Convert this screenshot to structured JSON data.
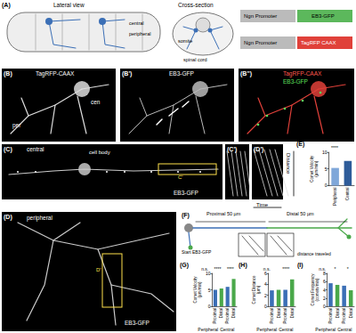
{
  "panels": {
    "A": {
      "label": "(A)",
      "texts": [
        "Lateral view",
        "Cross-section",
        "central",
        "peripheral",
        "somite",
        "spinal cord",
        "Ngn Promoter",
        "EB3-GFP",
        "Ngn Promoter",
        "TagRFP CAAX"
      ]
    },
    "B": {
      "label": "(B)",
      "texts": [
        "TagRFP-CAAX",
        "cen",
        "per"
      ]
    },
    "B1": {
      "label": "(B')",
      "texts": [
        "EB3-GFP"
      ]
    },
    "B2": {
      "label": "(B'')",
      "texts": [
        "TagRFP-CAAX",
        "EB3-GFP"
      ]
    },
    "C": {
      "label": "(C)",
      "texts": [
        "central",
        "cell body",
        "C'",
        "EB3-GFP"
      ]
    },
    "C1": {
      "label": "(C')"
    },
    "D1": {
      "label": "(D')",
      "texts": [
        "Distance",
        "Time"
      ]
    },
    "D": {
      "label": "(D)",
      "texts": [
        "peripheral",
        "D'",
        "EB3-GFP"
      ]
    },
    "F": {
      "label": "(F)",
      "texts": [
        "Proximal 50 µm",
        "Distal 50 µm",
        "Start EB3-GFP",
        "distance traveled"
      ]
    }
  },
  "chart_data": [
    {
      "type": "bar",
      "title": "(E)",
      "ylabel": "Comet Velocity (µm/min)",
      "categories": [
        "Peripheral",
        "Central"
      ],
      "values": [
        5.3,
        7.4
      ],
      "colors": [
        "#7fa7d9",
        "#2e5c9a"
      ],
      "ylim": [
        0,
        10
      ],
      "yticks": [
        0,
        5,
        10
      ],
      "annotations": [
        "****"
      ]
    },
    {
      "type": "bar",
      "title": "(G)",
      "ylabel": "Comet Velocity (µm/min)",
      "categories": [
        "Proximal",
        "Distal",
        "Proximal",
        "Distal"
      ],
      "groups": [
        "Peripheral",
        "Central"
      ],
      "values": [
        5.0,
        5.4,
        5.9,
        8.3
      ],
      "colors": [
        "#3b6fb6",
        "#4aa84a",
        "#3b6fb6",
        "#4aa84a"
      ],
      "ylim": [
        0,
        10
      ],
      "yticks": [
        0,
        5,
        10
      ],
      "annotations": [
        "n.s.",
        "****",
        "****"
      ]
    },
    {
      "type": "bar",
      "title": "(H)",
      "ylabel": "Comet Distance (µm)",
      "categories": [
        "Proximal",
        "Distal",
        "Proximal",
        "Distal"
      ],
      "groups": [
        "Peripheral",
        "Central"
      ],
      "values": [
        2.9,
        3.0,
        3.0,
        4.9
      ],
      "colors": [
        "#3b6fb6",
        "#4aa84a",
        "#3b6fb6",
        "#4aa84a"
      ],
      "ylim": [
        0,
        6
      ],
      "yticks": [
        0,
        2,
        4,
        6
      ],
      "annotations": [
        "n.s.",
        "****"
      ]
    },
    {
      "type": "bar",
      "title": "(I)",
      "ylabel": "Comet Frequency (comets/min)",
      "categories": [
        "Proximal",
        "Distal",
        "Proximal",
        "Distal"
      ],
      "groups": [
        "Peripheral",
        "Central"
      ],
      "values": [
        5.6,
        5.2,
        5.0,
        3.9
      ],
      "colors": [
        "#3b6fb6",
        "#4aa84a",
        "#3b6fb6",
        "#4aa84a"
      ],
      "ylim": [
        0,
        8
      ],
      "yticks": [
        0,
        2,
        4,
        6,
        8
      ],
      "annotations": [
        "n.s.",
        "*",
        "*"
      ]
    }
  ]
}
